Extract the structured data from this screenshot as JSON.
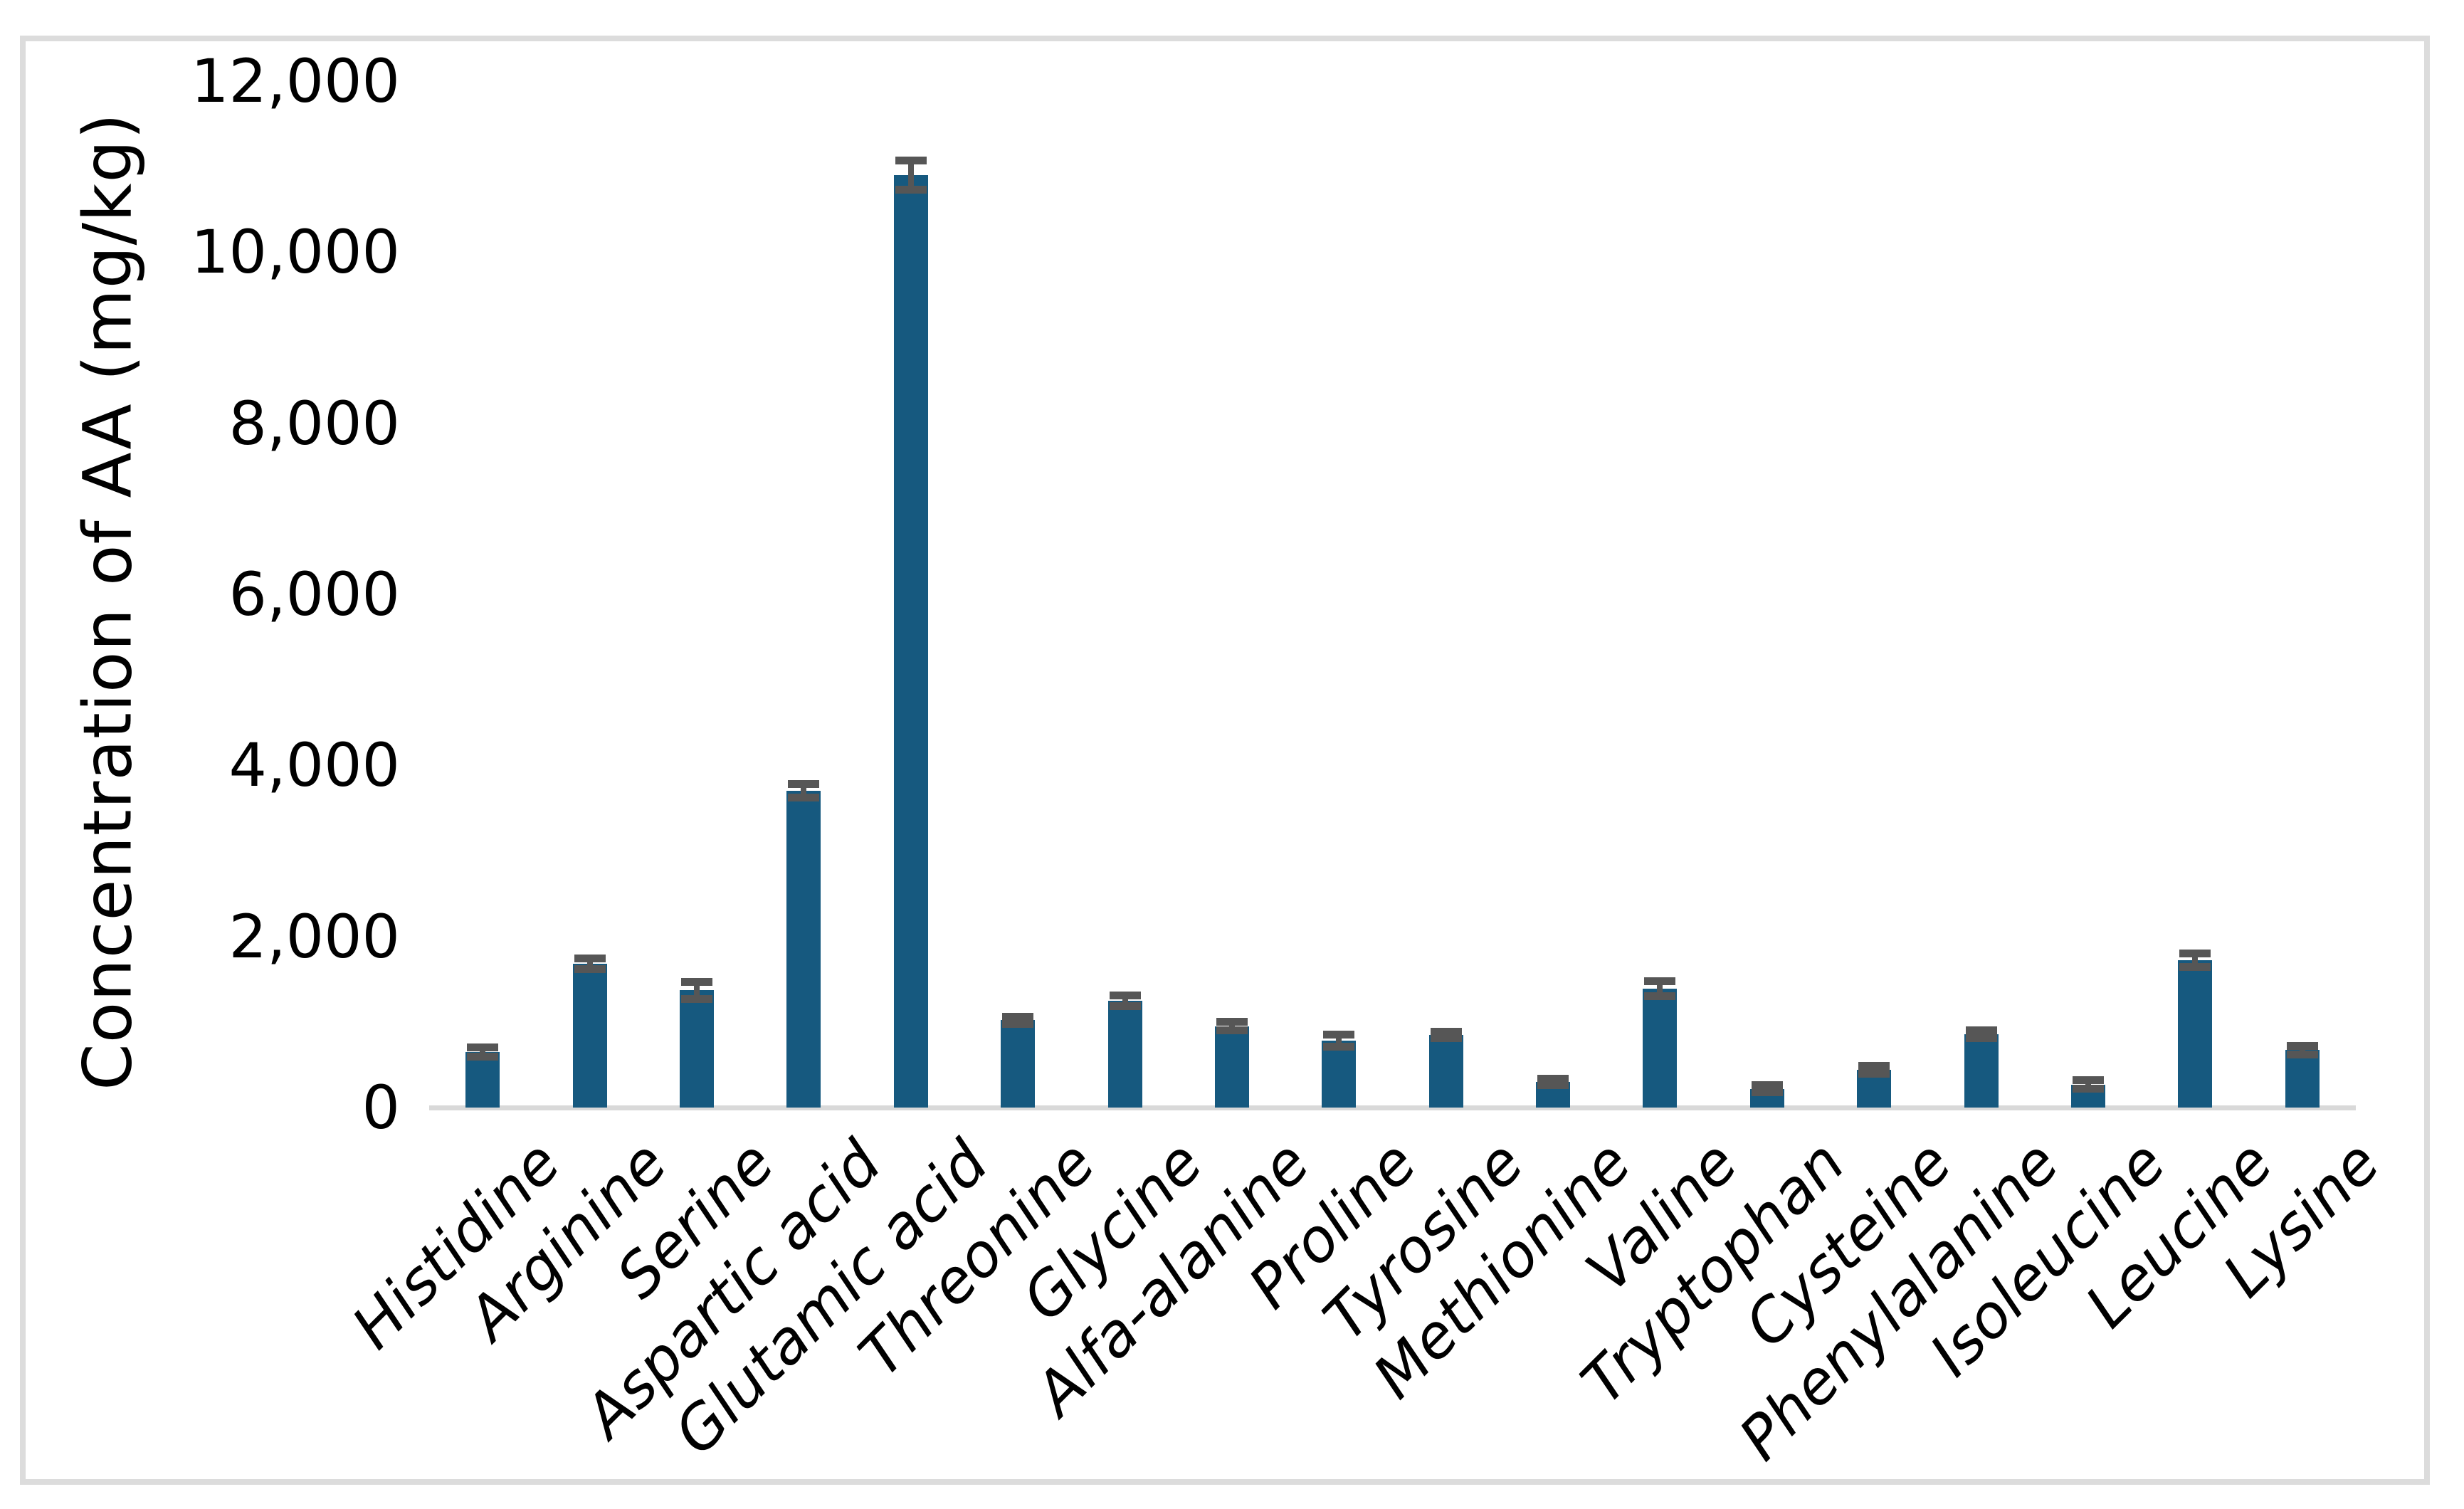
{
  "chart_data": {
    "type": "bar",
    "title": "",
    "xlabel": "",
    "ylabel": "Concentration of AA (mg/kg)",
    "ylim": [
      0,
      12000
    ],
    "ytick_labels": [
      "0",
      "2,000",
      "4,000",
      "6,000",
      "8,000",
      "10,000",
      "12,000"
    ],
    "categories": [
      "Histidine",
      "Arginine",
      "Serine",
      "Aspartic acid",
      "Glutamic acid",
      "Threonine",
      "Glycine",
      "Alfa-alanine",
      "Proline",
      "Tyrosine",
      "Methionine",
      "Valine",
      "Tryptophan",
      "Cysteine",
      "Phenylalanine",
      "Isoleucine",
      "Leucine",
      "Lysine"
    ],
    "values": [
      650,
      1680,
      1370,
      3700,
      10900,
      1020,
      1250,
      950,
      780,
      850,
      300,
      1390,
      220,
      440,
      860,
      270,
      1720,
      670
    ],
    "error_bars": [
      55,
      60,
      100,
      80,
      170,
      40,
      60,
      50,
      70,
      40,
      40,
      90,
      45,
      45,
      45,
      50,
      80,
      50
    ],
    "bar_color": "#16597F",
    "error_color": "#565656",
    "axis_line_color": "#D9D9D9",
    "frame_color": "#DCDCDC",
    "grid": false,
    "legend": "none"
  }
}
